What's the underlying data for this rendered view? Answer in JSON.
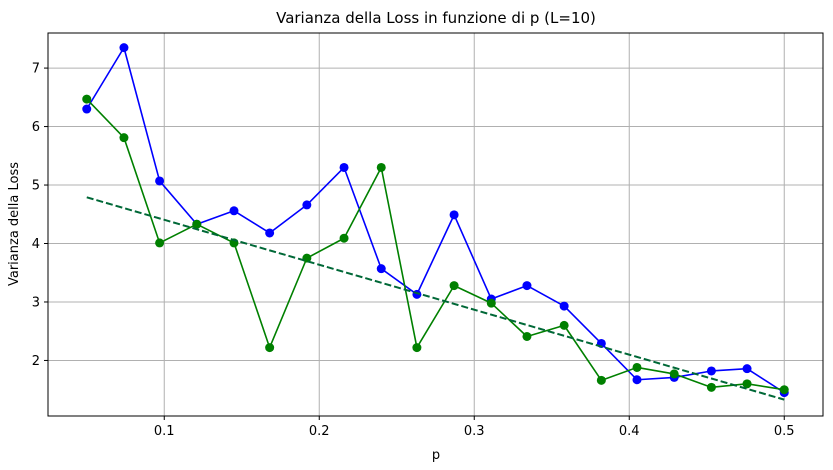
{
  "chart_data": {
    "type": "line",
    "title": "Varianza della Loss in funzione di p (L=10)",
    "xlabel": "p",
    "ylabel": "Varianza della Loss",
    "xlim": [
      0.025,
      0.525
    ],
    "ylim": [
      1.05,
      7.6
    ],
    "xticks": [
      0.1,
      0.2,
      0.3,
      0.4,
      0.5
    ],
    "xtick_labels": [
      "0.1",
      "0.2",
      "0.3",
      "0.4",
      "0.5"
    ],
    "yticks": [
      2,
      3,
      4,
      5,
      6,
      7
    ],
    "ytick_labels": [
      "2",
      "3",
      "4",
      "5",
      "6",
      "7"
    ],
    "grid": true,
    "x": [
      0.05,
      0.074,
      0.097,
      0.121,
      0.145,
      0.168,
      0.192,
      0.216,
      0.24,
      0.263,
      0.287,
      0.311,
      0.334,
      0.358,
      0.382,
      0.405,
      0.429,
      0.453,
      0.476,
      0.5
    ],
    "series": [
      {
        "color": "#0000ff",
        "style": "line-markers",
        "values": [
          6.3,
          7.35,
          5.07,
          4.33,
          4.56,
          4.18,
          4.66,
          5.3,
          3.57,
          3.13,
          4.49,
          3.05,
          3.28,
          2.93,
          2.29,
          1.67,
          1.71,
          1.82,
          1.86,
          1.45
        ]
      },
      {
        "color": "#008000",
        "style": "line-markers",
        "values": [
          6.47,
          5.81,
          4.01,
          4.33,
          4.01,
          2.22,
          3.75,
          4.09,
          5.3,
          2.22,
          3.28,
          2.98,
          2.41,
          2.6,
          1.66,
          1.88,
          1.77,
          1.54,
          1.6,
          1.5
        ]
      },
      {
        "color": "#006837",
        "style": "dashed",
        "x": [
          0.05,
          0.5
        ],
        "values": [
          4.79,
          1.33
        ]
      }
    ]
  }
}
